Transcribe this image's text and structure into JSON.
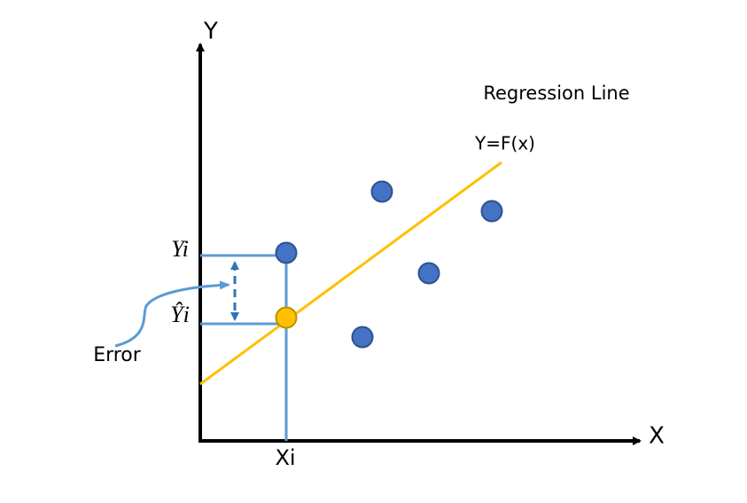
{
  "axes": {
    "y_label": "Y",
    "x_label": "X"
  },
  "regression": {
    "title": "Regression Line",
    "equation": "Y=F(x)"
  },
  "labels": {
    "observed": "Yi",
    "predicted": "Ŷi",
    "error": "Error",
    "x_value": "Xi"
  }
}
